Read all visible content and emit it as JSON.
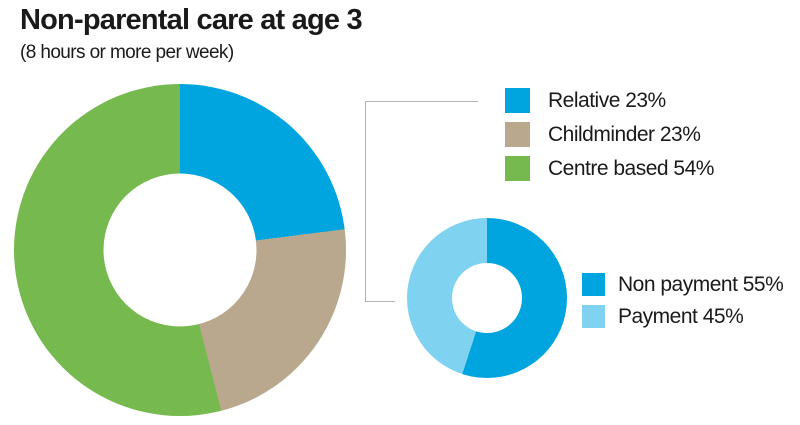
{
  "header": {
    "title": "Non-parental care at age 3",
    "subtitle": "(8 hours or more per week)"
  },
  "colors": {
    "blue": "#00a4df",
    "tan": "#b9a88e",
    "green": "#76b94e",
    "light_blue": "#7fd3f1",
    "text": "#1a1a1a",
    "callout_line": "#b3b3b3"
  },
  "chart_data": [
    {
      "type": "pie",
      "subtype": "donut",
      "title": "Non-parental care at age 3",
      "subtitle": "(8 hours or more per week)",
      "unit": "%",
      "start_angle_deg": 0,
      "direction": "clockwise",
      "legend_position": "right",
      "categories": [
        "Relative",
        "Childminder",
        "Centre based"
      ],
      "values": [
        23,
        23,
        54
      ],
      "segments": [
        {
          "label": "Relative",
          "value": 23,
          "color": "#00a4df",
          "legend_text": "Relative 23%"
        },
        {
          "label": "Childminder",
          "value": 23,
          "color": "#b9a88e",
          "legend_text": "Childminder 23%"
        },
        {
          "label": "Centre based",
          "value": 54,
          "color": "#76b94e",
          "legend_text": "Centre based 54%"
        }
      ]
    },
    {
      "type": "pie",
      "subtype": "donut",
      "unit": "%",
      "start_angle_deg": 0,
      "direction": "clockwise",
      "legend_position": "right",
      "categories": [
        "Non payment",
        "Payment"
      ],
      "values": [
        55,
        45
      ],
      "segments": [
        {
          "label": "Non payment",
          "value": 55,
          "color": "#00a4df",
          "legend_text": "Non payment 55%"
        },
        {
          "label": "Payment",
          "value": 45,
          "color": "#7fd3f1",
          "legend_text": "Payment 45%"
        }
      ]
    }
  ]
}
